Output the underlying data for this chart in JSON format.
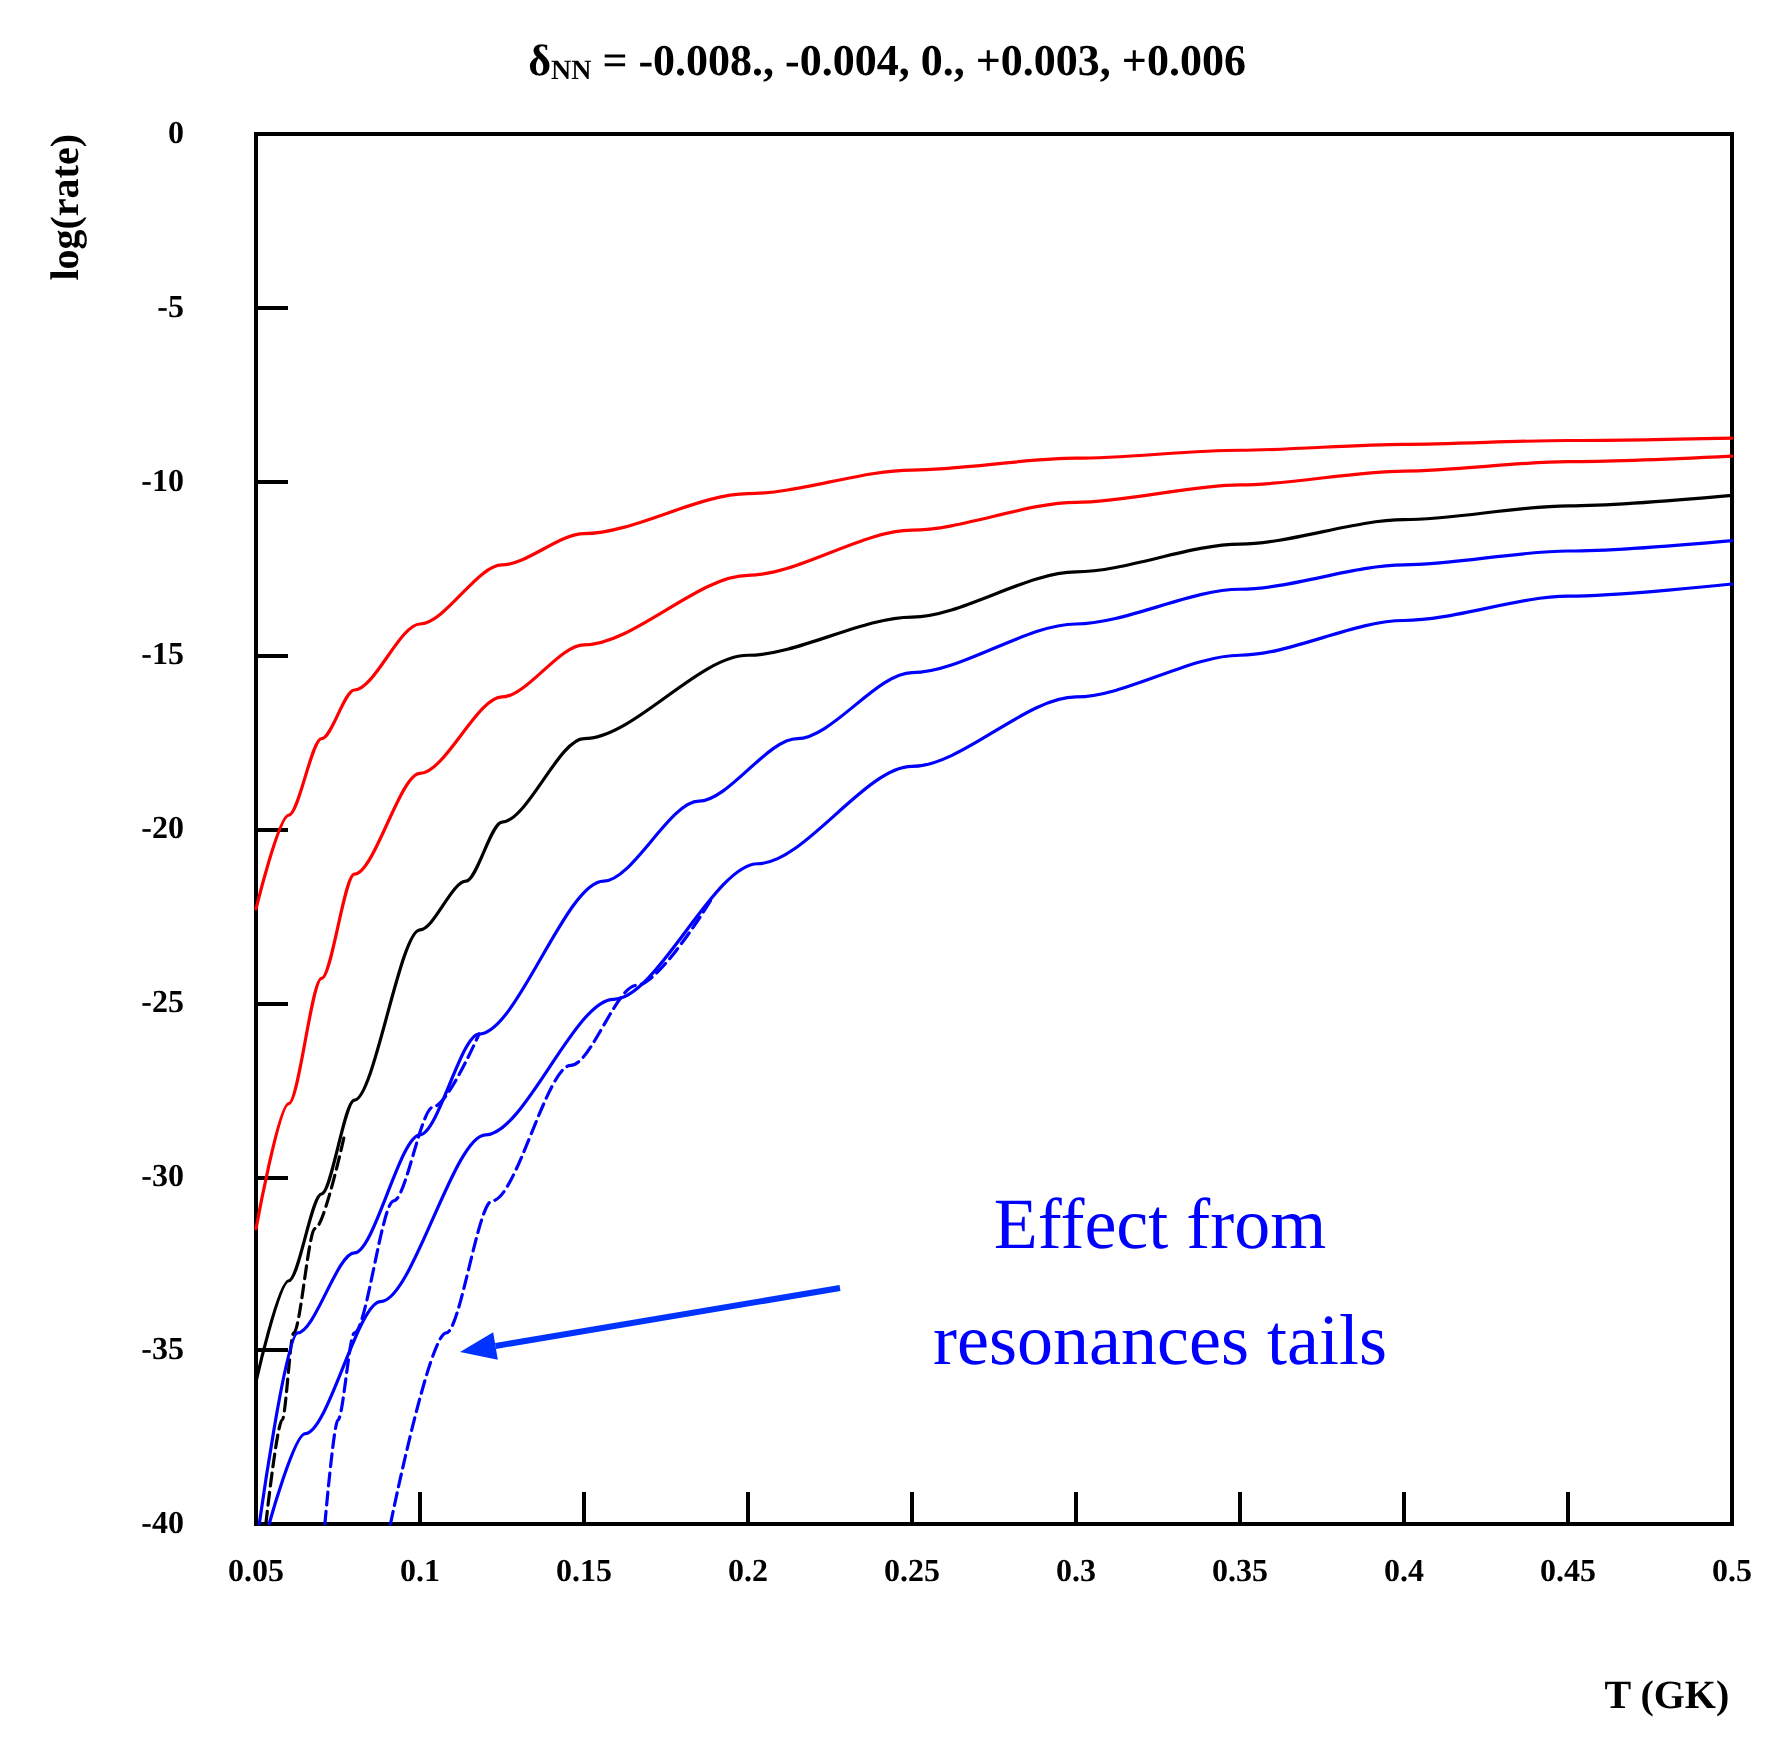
{
  "chart_data": {
    "type": "line",
    "title": "δ$_{NN}$ = -0.008., -0.004, 0., +0.003, +0.006",
    "xlabel": "T (GK)",
    "ylabel": "log(rate)",
    "xlim": [
      0.05,
      0.5
    ],
    "xticks": [
      0.05,
      0.1,
      0.15,
      0.2,
      0.25,
      0.3,
      0.35,
      0.4,
      0.45,
      0.5
    ],
    "ylim": [
      -40,
      0
    ],
    "yticks": [
      -40,
      -35,
      -30,
      -25,
      -20,
      -15,
      -10,
      -5,
      0
    ],
    "grid": false,
    "marker": "none",
    "line_style": "solid",
    "series": [
      {
        "color": "#ff0000",
        "x": [
          0.05,
          0.06,
          0.07,
          0.08,
          0.1,
          0.125,
          0.15,
          0.2,
          0.25,
          0.3,
          0.35,
          0.4,
          0.45,
          0.5
        ],
        "values": [
          -22.3,
          -19.6,
          -17.4,
          -16.0,
          -14.1,
          -12.4,
          -11.5,
          -10.35,
          -9.67,
          -9.33,
          -9.1,
          -8.93,
          -8.82,
          -8.75
        ]
      },
      {
        "color": "#ff0000",
        "x": [
          0.05,
          0.06,
          0.07,
          0.08,
          0.1,
          0.125,
          0.15,
          0.2,
          0.25,
          0.3,
          0.35,
          0.4,
          0.45,
          0.5
        ],
        "values": [
          -31.5,
          -27.9,
          -24.3,
          -21.3,
          -18.4,
          -16.2,
          -14.7,
          -12.7,
          -11.4,
          -10.6,
          -10.1,
          -9.7,
          -9.43,
          -9.27
        ]
      },
      {
        "color": "#000000",
        "x": [
          0.05,
          0.06,
          0.07,
          0.08,
          0.1,
          0.114,
          0.125,
          0.15,
          0.2,
          0.25,
          0.3,
          0.35,
          0.4,
          0.45,
          0.5
        ],
        "values": [
          -35.9,
          -33.0,
          -30.5,
          -27.8,
          -22.9,
          -21.5,
          -19.8,
          -17.4,
          -15.0,
          -13.9,
          -12.6,
          -11.8,
          -11.1,
          -10.7,
          -10.4
        ]
      },
      {
        "color": "#000000",
        "line_style": "dashed",
        "x": [
          0.053,
          0.058,
          0.0615,
          0.068,
          0.077
        ],
        "values": [
          -40,
          -37,
          -34.5,
          -31.5,
          -28.8
        ]
      },
      {
        "color": "#0000ff",
        "x": [
          0.051,
          0.0627,
          0.08,
          0.1,
          0.118,
          0.156,
          0.185,
          0.215,
          0.25,
          0.3,
          0.35,
          0.4,
          0.45,
          0.5
        ],
        "values": [
          -40,
          -34.5,
          -32.2,
          -28.8,
          -25.9,
          -21.5,
          -19.2,
          -17.4,
          -15.5,
          -14.1,
          -13.1,
          -12.4,
          -12.0,
          -11.7
        ]
      },
      {
        "color": "#0000ff",
        "line_style": "dashed",
        "x": [
          0.071,
          0.075,
          0.08,
          0.092,
          0.104,
          0.118
        ],
        "values": [
          -40,
          -37,
          -34.5,
          -30.7,
          -28,
          -25.9
        ]
      },
      {
        "color": "#0000ff",
        "x": [
          0.054,
          0.065,
          0.088,
          0.12,
          0.159,
          0.203,
          0.25,
          0.3,
          0.35,
          0.4,
          0.45,
          0.5
        ],
        "values": [
          -40,
          -37.4,
          -33.6,
          -28.8,
          -24.9,
          -21.0,
          -18.2,
          -16.2,
          -15.0,
          -14.0,
          -13.3,
          -12.95
        ]
      },
      {
        "color": "#0000ff",
        "line_style": "dashed",
        "x": [
          0.091,
          0.108,
          0.122,
          0.146,
          0.166,
          0.189
        ],
        "values": [
          -40,
          -34.5,
          -30.7,
          -26.8,
          -24.5,
          -22.0
        ]
      }
    ],
    "annotations": [
      "Effect from resonances tails"
    ]
  }
}
